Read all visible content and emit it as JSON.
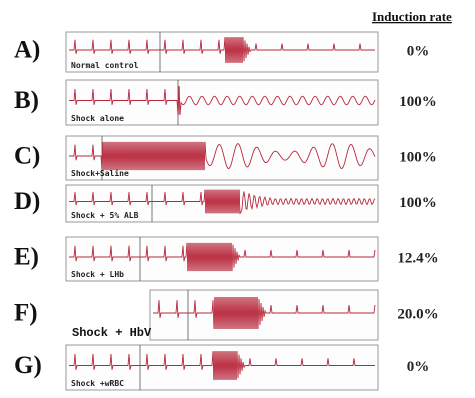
{
  "header": {
    "title": "Induction rate"
  },
  "panels": [
    {
      "label": "A)",
      "caption": "Normal control",
      "rate": "0%"
    },
    {
      "label": "B)",
      "caption": "Shock alone",
      "rate": "100%"
    },
    {
      "label": "C)",
      "caption": "Shock+Saline",
      "rate": "100%"
    },
    {
      "label": "D)",
      "caption": "Shock + 5% ALB",
      "rate": "100%"
    },
    {
      "label": "E)",
      "caption": "Shock + LHb",
      "rate": "12.4%"
    },
    {
      "label": "F)",
      "caption": "Shock + HbV",
      "rate": "20.0%"
    },
    {
      "label": "G)",
      "caption": "Shock +wRBC",
      "rate": "0%"
    }
  ]
}
